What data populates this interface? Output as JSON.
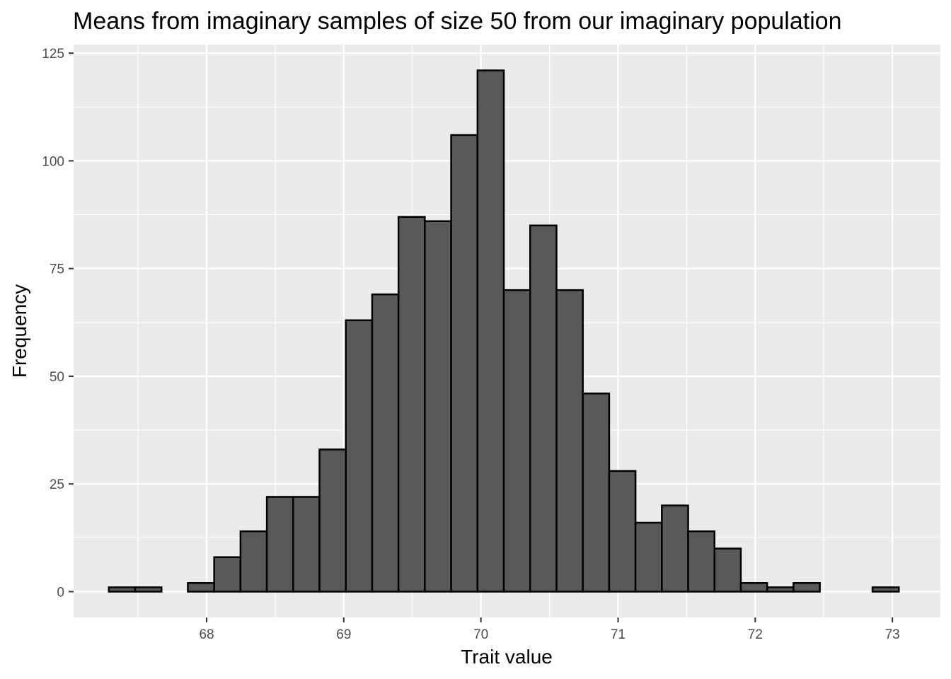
{
  "chart_data": {
    "type": "bar",
    "title": "Means from imaginary samples of size 50 from our imaginary population",
    "xlabel": "Trait value",
    "ylabel": "Frequency",
    "x_ticks": [
      68,
      69,
      70,
      71,
      72,
      73
    ],
    "y_ticks": [
      0,
      25,
      50,
      75,
      100,
      125
    ],
    "xlim": [
      67.03,
      73.35
    ],
    "ylim": [
      -6,
      127
    ],
    "grid": true,
    "bin_width": 0.192,
    "bins": [
      {
        "start": 67.287,
        "end": 67.479,
        "count": 1
      },
      {
        "start": 67.479,
        "end": 67.671,
        "count": 1
      },
      {
        "start": 67.671,
        "end": 67.863,
        "count": 0
      },
      {
        "start": 67.863,
        "end": 68.055,
        "count": 2
      },
      {
        "start": 68.055,
        "end": 68.247,
        "count": 8
      },
      {
        "start": 68.247,
        "end": 68.439,
        "count": 14
      },
      {
        "start": 68.439,
        "end": 68.631,
        "count": 22
      },
      {
        "start": 68.631,
        "end": 68.823,
        "count": 22
      },
      {
        "start": 68.823,
        "end": 69.015,
        "count": 33
      },
      {
        "start": 69.015,
        "end": 69.207,
        "count": 63
      },
      {
        "start": 69.207,
        "end": 69.399,
        "count": 69
      },
      {
        "start": 69.399,
        "end": 69.591,
        "count": 87
      },
      {
        "start": 69.591,
        "end": 69.783,
        "count": 86
      },
      {
        "start": 69.783,
        "end": 69.975,
        "count": 106
      },
      {
        "start": 69.975,
        "end": 70.167,
        "count": 121
      },
      {
        "start": 70.167,
        "end": 70.359,
        "count": 70
      },
      {
        "start": 70.359,
        "end": 70.551,
        "count": 85
      },
      {
        "start": 70.551,
        "end": 70.743,
        "count": 70
      },
      {
        "start": 70.743,
        "end": 70.935,
        "count": 46
      },
      {
        "start": 70.935,
        "end": 71.127,
        "count": 28
      },
      {
        "start": 71.127,
        "end": 71.319,
        "count": 16
      },
      {
        "start": 71.319,
        "end": 71.511,
        "count": 20
      },
      {
        "start": 71.511,
        "end": 71.703,
        "count": 14
      },
      {
        "start": 71.703,
        "end": 71.895,
        "count": 10
      },
      {
        "start": 71.895,
        "end": 72.087,
        "count": 2
      },
      {
        "start": 72.087,
        "end": 72.279,
        "count": 1
      },
      {
        "start": 72.279,
        "end": 72.471,
        "count": 2
      },
      {
        "start": 72.471,
        "end": 72.663,
        "count": 0
      },
      {
        "start": 72.663,
        "end": 72.855,
        "count": 0
      },
      {
        "start": 72.855,
        "end": 73.047,
        "count": 1
      }
    ],
    "colors": {
      "panel_background": "#ebebeb",
      "grid": "#ffffff",
      "bar_fill": "#595959",
      "bar_outline": "#000000",
      "tick_label": "#4d4d4d"
    }
  }
}
